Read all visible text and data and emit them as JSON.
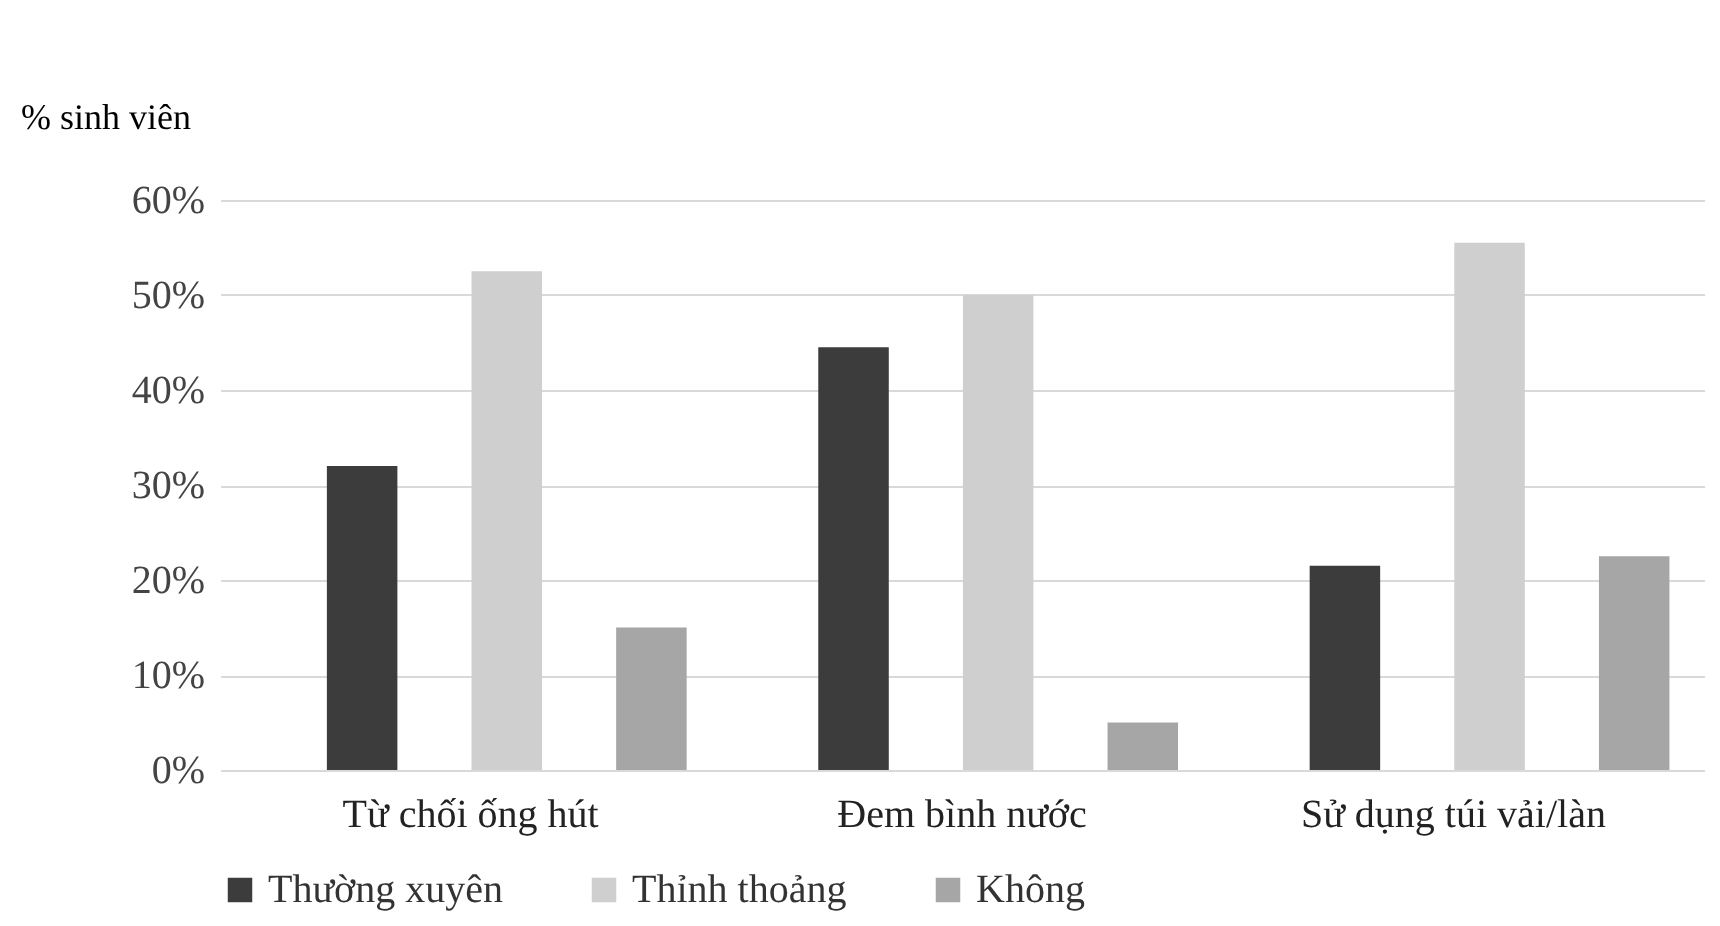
{
  "chart_data": {
    "type": "bar",
    "ylabel": "% sinh viên",
    "categories": [
      "Từ chối ống hút",
      "Đem bình nước",
      "Sử dụng túi vải/làn"
    ],
    "series": [
      {
        "name": "Thường xuyên",
        "color": "#3c3c3c",
        "values": [
          32,
          44.5,
          21.5
        ]
      },
      {
        "name": "Thỉnh thoảng",
        "color": "#cfcfcf",
        "values": [
          52.5,
          50,
          55.5
        ]
      },
      {
        "name": "Không",
        "color": "#a6a6a6",
        "values": [
          15,
          5,
          22.5
        ]
      }
    ],
    "ylim": [
      0,
      60
    ],
    "yticks": [
      {
        "value": 0,
        "label": "0%"
      },
      {
        "value": 10,
        "label": "10%"
      },
      {
        "value": 20,
        "label": "20%"
      },
      {
        "value": 30,
        "label": "30%"
      },
      {
        "value": 40,
        "label": "40%"
      },
      {
        "value": 50,
        "label": "50%"
      },
      {
        "value": 60,
        "label": "60%"
      }
    ],
    "grid": "y",
    "legend": "bottom"
  }
}
